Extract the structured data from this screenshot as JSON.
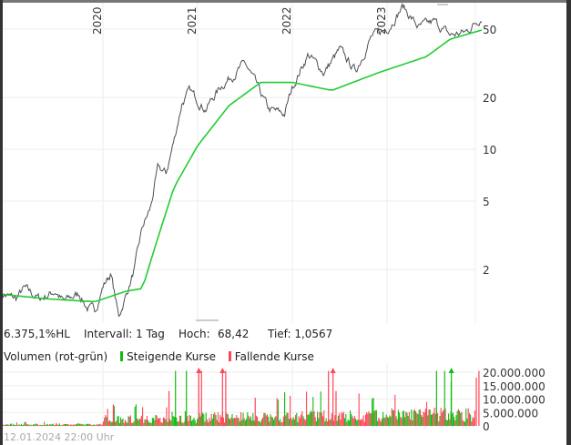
{
  "chart_data": [
    {
      "type": "line",
      "yscale": "log",
      "ylim": [
        1.0,
        68.42
      ],
      "yticks": [
        "50",
        "20",
        "10",
        "5",
        "2"
      ],
      "ytick_values": [
        50,
        20,
        10,
        5,
        2
      ],
      "xticks": [
        "2020",
        "2021",
        "2022",
        "2023"
      ],
      "grid": true,
      "series": [
        {
          "key": "price",
          "color": "#4a4f55",
          "points": [
            [
              "2018-12",
              1.45
            ],
            [
              "2019-02",
              1.35
            ],
            [
              "2019-03",
              1.55
            ],
            [
              "2019-05",
              1.35
            ],
            [
              "2019-07",
              1.5
            ],
            [
              "2019-08",
              1.3
            ],
            [
              "2019-10",
              1.45
            ],
            [
              "2019-11",
              1.2
            ],
            [
              "2019-12",
              1.15
            ],
            [
              "2020-01",
              1.6
            ],
            [
              "2020-02",
              1.9
            ],
            [
              "2020-03",
              1.06
            ],
            [
              "2020-04",
              1.45
            ],
            [
              "2020-05",
              2.0
            ],
            [
              "2020-06",
              3.5
            ],
            [
              "2020-07",
              4.5
            ],
            [
              "2020-08",
              7.8
            ],
            [
              "2020-09",
              7.2
            ],
            [
              "2020-10",
              11.2
            ],
            [
              "2020-11",
              18.5
            ],
            [
              "2020-12",
              21.8
            ],
            [
              "2021-02",
              17.2
            ],
            [
              "2021-04",
              23.4
            ],
            [
              "2021-07",
              31.5
            ],
            [
              "2021-08",
              26
            ],
            [
              "2021-10",
              17
            ],
            [
              "2021-12",
              16
            ],
            [
              "2022-01",
              23
            ],
            [
              "2022-03",
              35.6
            ],
            [
              "2022-05",
              28
            ],
            [
              "2022-07",
              37.8
            ],
            [
              "2022-09",
              28.5
            ],
            [
              "2022-11",
              45
            ],
            [
              "2023-01",
              50
            ],
            [
              "2023-03",
              67.9
            ],
            [
              "2023-05",
              51
            ],
            [
              "2023-07",
              55
            ],
            [
              "2023-09",
              46
            ],
            [
              "2023-11",
              48
            ],
            [
              "2024-01",
              59
            ]
          ]
        },
        {
          "key": "moving-average",
          "color": "#22cc33",
          "points": [
            [
              "2018-12",
              1.44
            ],
            [
              "2019-06",
              1.35
            ],
            [
              "2019-12",
              1.3
            ],
            [
              "2020-04",
              1.5
            ],
            [
              "2020-06",
              1.55
            ],
            [
              "2020-08",
              3.1
            ],
            [
              "2020-10",
              6.0
            ],
            [
              "2021-01",
              10.5
            ],
            [
              "2021-05",
              18
            ],
            [
              "2021-09",
              24.5
            ],
            [
              "2022-01",
              24.5
            ],
            [
              "2022-06",
              22
            ],
            [
              "2022-12",
              28
            ],
            [
              "2023-06",
              34.6
            ],
            [
              "2023-09",
              43.7
            ],
            [
              "2024-01",
              49.4
            ]
          ]
        }
      ]
    },
    {
      "type": "bar",
      "title": "Volumen (rot-grün)",
      "ylim": [
        0,
        20000000
      ],
      "yticks": [
        "20.000.000",
        "15.000.000",
        "10.000.000",
        "5.000.000",
        "0"
      ],
      "ytick_values": [
        20000000,
        15000000,
        10000000,
        5000000,
        0
      ],
      "legend": [
        {
          "label": "Steigende Kurse",
          "color": "#11bb11"
        },
        {
          "label": "Fallende Kurse",
          "color": "#ff4455"
        }
      ],
      "typical_volume": {
        "2019": 500000,
        "2020": 2500000,
        "2021": 3000000,
        "2022": 3500000,
        "2023": 4000000
      },
      "spikes": [
        [
          "2020-02",
          8000000,
          "down"
        ],
        [
          "2020-09",
          13000000,
          "down"
        ],
        [
          "2020-10",
          21000000,
          "up"
        ],
        [
          "2020-11",
          22000000,
          "up"
        ],
        [
          "2021-01",
          22000000,
          "down"
        ],
        [
          "2021-04",
          22000000,
          "down"
        ],
        [
          "2021-08",
          10500000,
          "down"
        ],
        [
          "2021-12",
          12500000,
          "up"
        ],
        [
          "2022-05",
          22000000,
          "down"
        ],
        [
          "2022-06",
          13000000,
          "down"
        ],
        [
          "2022-11",
          10500000,
          "up"
        ],
        [
          "2023-07",
          21000000,
          "up"
        ],
        [
          "2023-08",
          22000000,
          "up"
        ],
        [
          "2023-09",
          16500000,
          "up"
        ],
        [
          "2023-12",
          21000000,
          "down"
        ],
        [
          "2023-12",
          18000000,
          "down"
        ]
      ],
      "overflow_markers": [
        "2020-12",
        "2021-03",
        "2022-05",
        "2023-08"
      ]
    }
  ],
  "info": {
    "hl": "6.375,1%HL",
    "interval": "Intervall: 1 Tag",
    "high_label": "Hoch:",
    "high": "68,42",
    "low": "Tief: 1,0567"
  },
  "timestamp": "12.01.2024 22:00 Uhr",
  "colors": {
    "up": "#11bb11",
    "down": "#ff4455",
    "grid": "#eeeeee"
  }
}
